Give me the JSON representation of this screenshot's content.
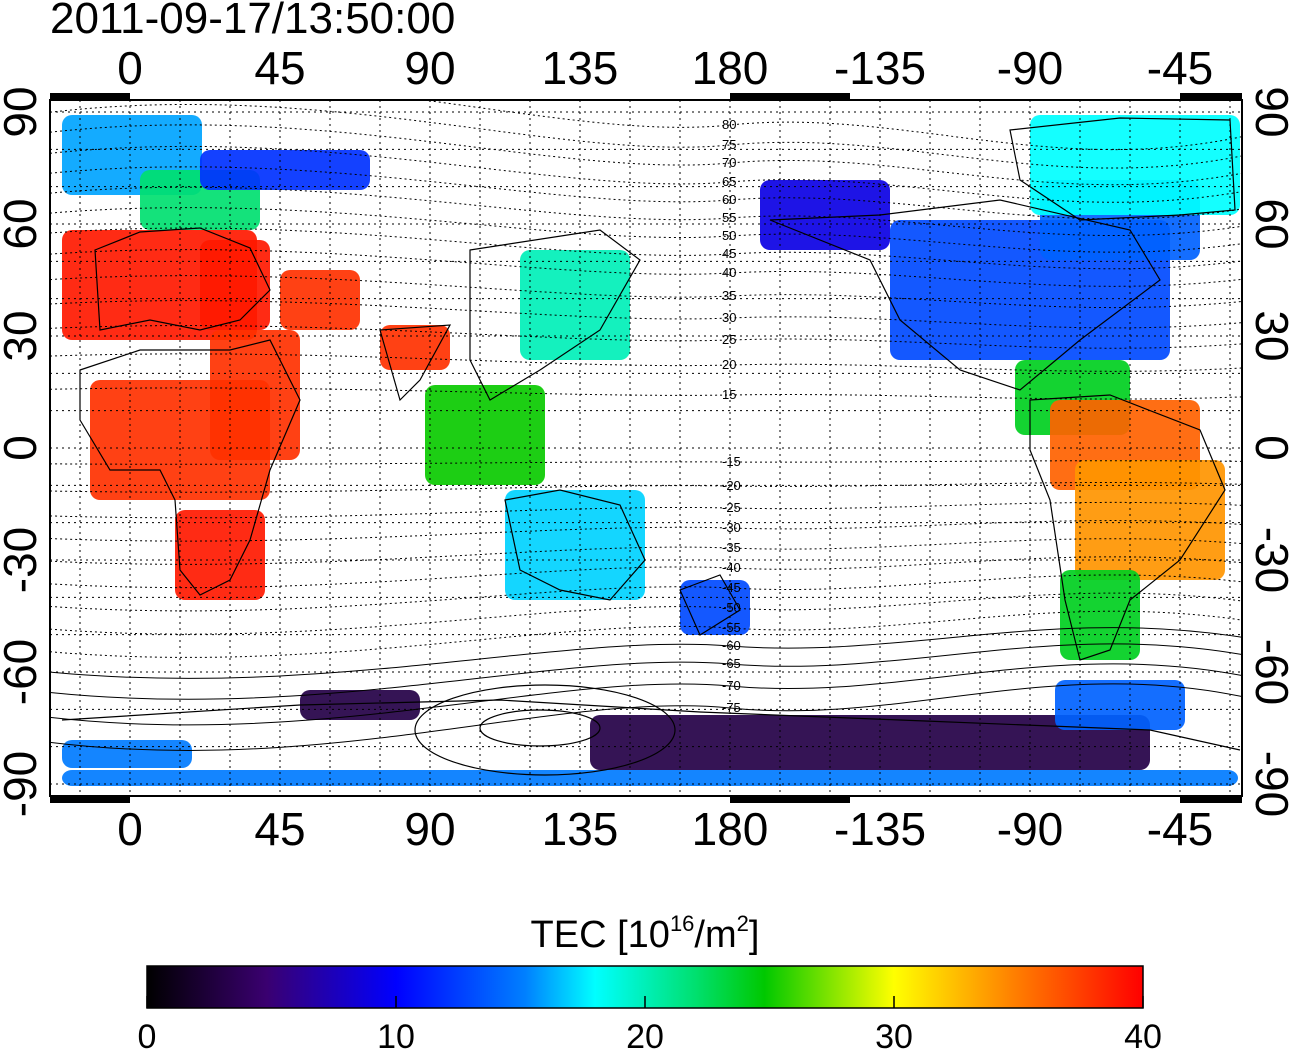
{
  "title": "2011-09-17/13:50:00",
  "map": {
    "lon_top_ticks": [
      "0",
      "45",
      "90",
      "135",
      "180",
      "-135",
      "-90",
      "-45"
    ],
    "lon_bottom_ticks": [
      "0",
      "45",
      "90",
      "135",
      "180",
      "-135",
      "-90",
      "-45"
    ],
    "lat_left_ticks": [
      "90",
      "60",
      "30",
      "0",
      "-30",
      "-60",
      "-90"
    ],
    "lat_right_ticks": [
      "90",
      "60",
      "30",
      "0",
      "-30",
      "-60",
      "-90"
    ],
    "magnetic_latitude_labels": [
      "80",
      "75",
      "70",
      "65",
      "60",
      "55",
      "50",
      "45",
      "40",
      "35",
      "30",
      "25",
      "20",
      "15",
      "-15",
      "-20",
      "-25",
      "-30",
      "-35",
      "-40",
      "-45",
      "-50",
      "-55",
      "-60",
      "-65",
      "-70",
      "-75"
    ],
    "tec_regions": [
      {
        "region": "europe",
        "tec": 39
      },
      {
        "region": "africa",
        "tec": 38
      },
      {
        "region": "south-africa",
        "tec": 39
      },
      {
        "region": "india",
        "tec": 38
      },
      {
        "region": "north-atlantic-high-lat",
        "tec": 16
      },
      {
        "region": "scandinavia",
        "tec": 22
      },
      {
        "region": "siberia",
        "tec": 12
      },
      {
        "region": "japan",
        "tec": 20
      },
      {
        "region": "southeast-asia",
        "tec": 25
      },
      {
        "region": "australia",
        "tec": 17
      },
      {
        "region": "new-zealand",
        "tec": 13
      },
      {
        "region": "north-america",
        "tec": 13
      },
      {
        "region": "alaska",
        "tec": 9
      },
      {
        "region": "canada-east",
        "tec": 14
      },
      {
        "region": "greenland",
        "tec": 18
      },
      {
        "region": "caribbean",
        "tec": 24
      },
      {
        "region": "south-america-north",
        "tec": 36
      },
      {
        "region": "brazil",
        "tec": 34
      },
      {
        "region": "argentina",
        "tec": 24
      },
      {
        "region": "antarctica-pacific",
        "tec": 3
      },
      {
        "region": "antarctica-atlantic",
        "tec": 14
      },
      {
        "region": "southern-ocean-band",
        "tec": 15
      }
    ]
  },
  "colorbar": {
    "title": "TEC [10",
    "title_sup": "16",
    "title_unit": "/m",
    "title_sup2": "2",
    "title_end": "]",
    "ticks": [
      "0",
      "10",
      "20",
      "30",
      "40"
    ],
    "min": 0,
    "max": 40
  }
}
